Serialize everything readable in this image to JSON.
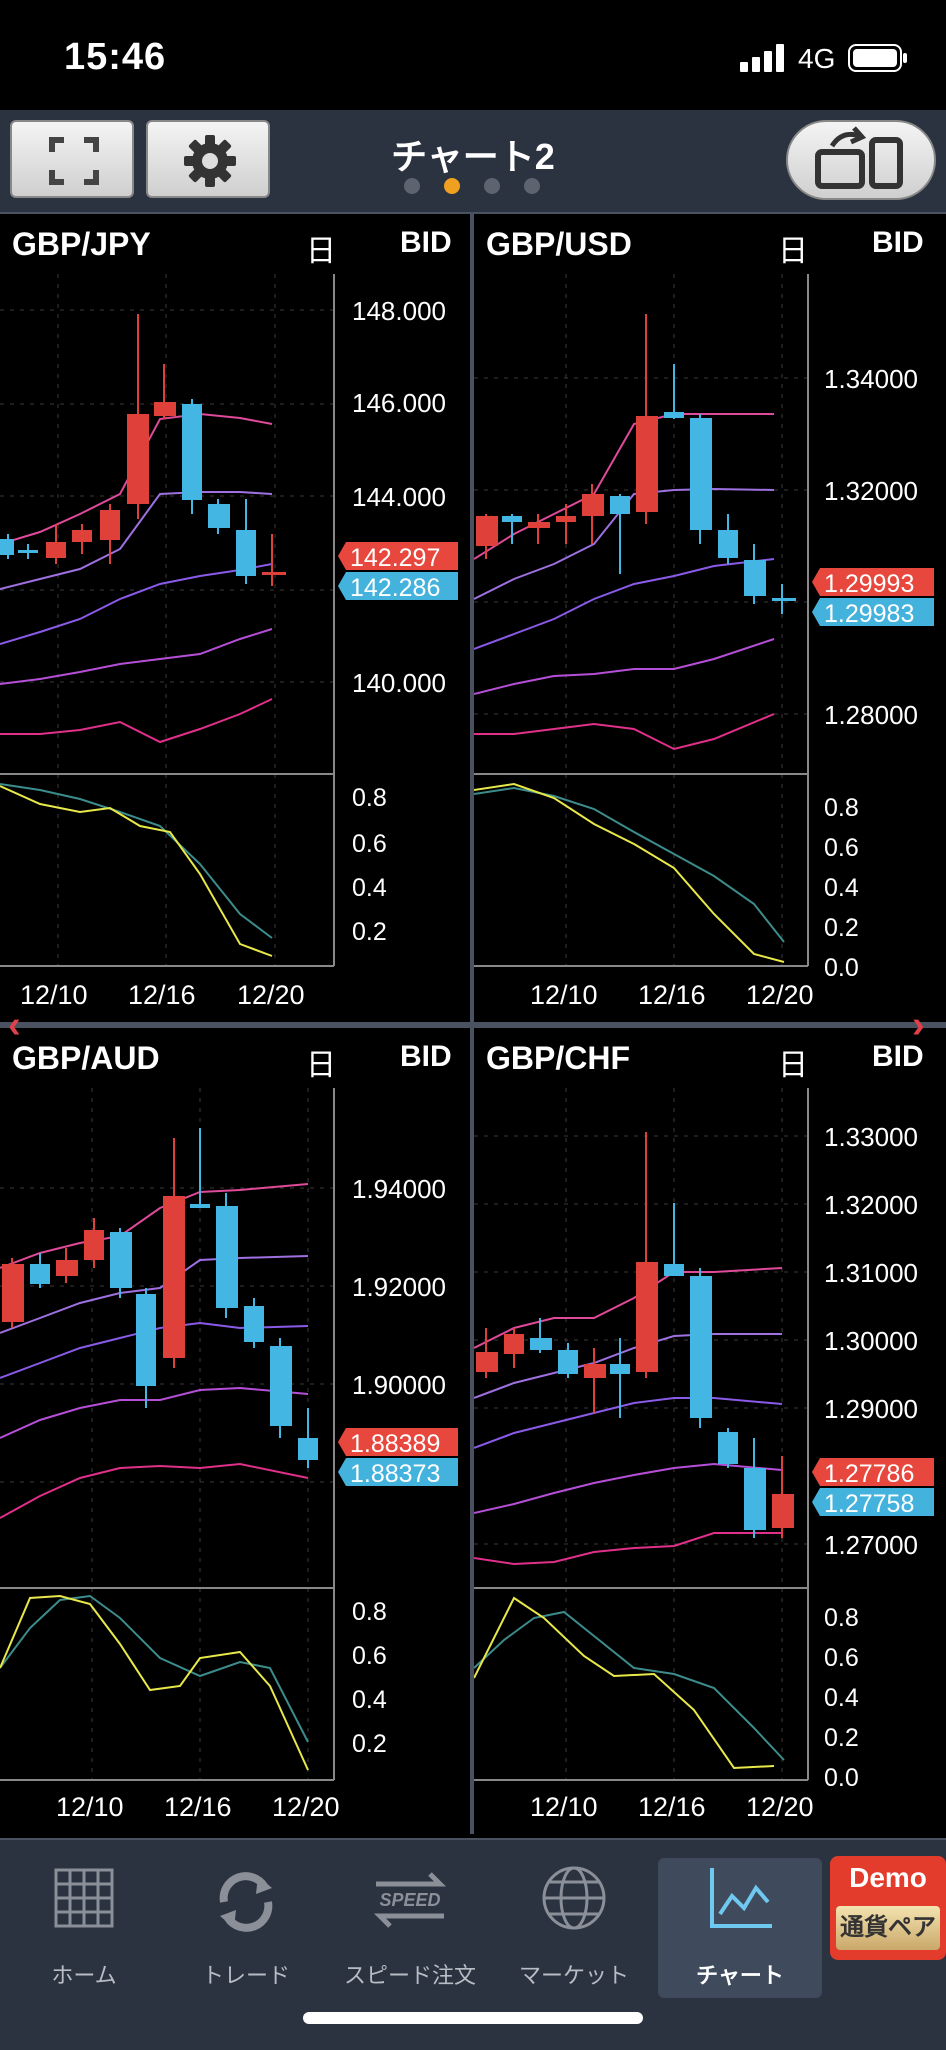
{
  "status": {
    "time": "15:46",
    "network": "4G"
  },
  "header": {
    "title": "チャート2",
    "page_dots": 4,
    "active_dot": 1
  },
  "colors": {
    "ask": "#e8473d",
    "bid": "#43b3de",
    "up_candle": "#e0403a",
    "down_candle": "#44b6e4",
    "header_bg": "#2c3340"
  },
  "panels": [
    {
      "pair": "GBP/JPY",
      "period": "日",
      "side": "BID",
      "price_ticks": [
        "148.000",
        "146.000",
        "144.000",
        "140.000"
      ],
      "ask_price": "142.297",
      "bid_price": "142.286",
      "osc_ticks": [
        "0.8",
        "0.6",
        "0.4",
        "0.2"
      ],
      "dates": [
        "12/10",
        "12/16",
        "12/20"
      ]
    },
    {
      "pair": "GBP/USD",
      "period": "日",
      "side": "BID",
      "price_ticks": [
        "1.34000",
        "1.32000",
        "1.28000"
      ],
      "ask_price": "1.29993",
      "bid_price": "1.29983",
      "osc_ticks": [
        "0.8",
        "0.6",
        "0.4",
        "0.2",
        "0.0"
      ],
      "dates": [
        "12/10",
        "12/16",
        "12/20"
      ]
    },
    {
      "pair": "GBP/AUD",
      "period": "日",
      "side": "BID",
      "price_ticks": [
        "1.94000",
        "1.92000",
        "1.90000"
      ],
      "ask_price": "1.88389",
      "bid_price": "1.88373",
      "osc_ticks": [
        "0.8",
        "0.6",
        "0.4",
        "0.2"
      ],
      "dates": [
        "12/10",
        "12/16",
        "12/20"
      ]
    },
    {
      "pair": "GBP/CHF",
      "period": "日",
      "side": "BID",
      "price_ticks": [
        "1.33000",
        "1.32000",
        "1.31000",
        "1.30000",
        "1.29000",
        "1.27000"
      ],
      "ask_price": "1.27786",
      "bid_price": "1.27758",
      "osc_ticks": [
        "0.8",
        "0.6",
        "0.4",
        "0.2",
        "0.0"
      ],
      "dates": [
        "12/10",
        "12/16",
        "12/20"
      ]
    }
  ],
  "nav": {
    "items": [
      {
        "label": "ホーム",
        "icon": "grid-icon"
      },
      {
        "label": "トレード",
        "icon": "refresh-arrows-icon"
      },
      {
        "label": "スピード注文",
        "icon": "speed-arrows-icon"
      },
      {
        "label": "マーケット",
        "icon": "globe-icon"
      },
      {
        "label": "チャート",
        "icon": "chart-icon"
      }
    ],
    "active_index": 4,
    "demo_label": "Demo",
    "demo_sub": "通貨ペア"
  }
}
